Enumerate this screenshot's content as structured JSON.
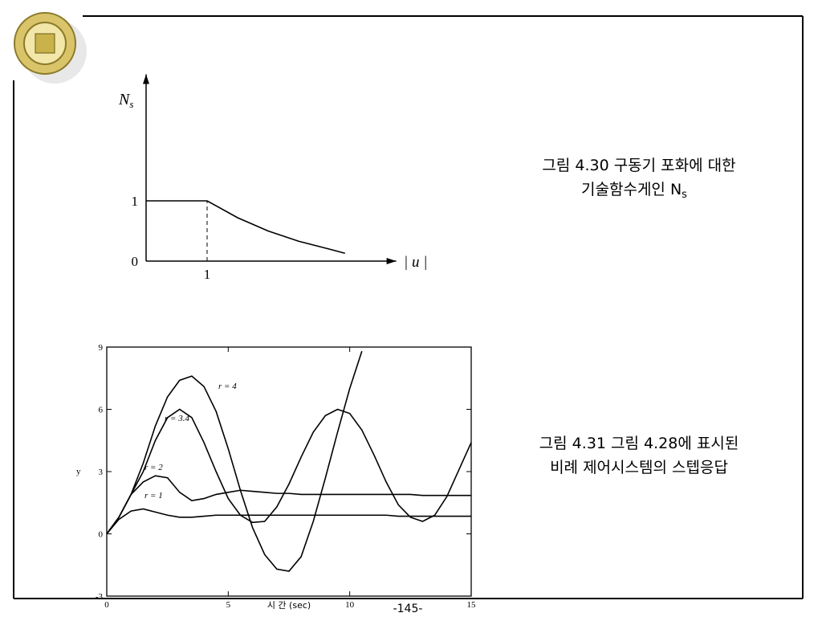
{
  "chart_data": [
    {
      "type": "line",
      "y_label": "N",
      "y_label_subscript": "s",
      "x_label": "| u |",
      "x": [
        0,
        1,
        1.5,
        2,
        2.5,
        3,
        3.26
      ],
      "values": [
        1,
        1,
        0.72,
        0.5,
        0.33,
        0.2,
        0.13
      ],
      "xlim": [
        0,
        4.1
      ],
      "ylim": [
        0,
        3.1
      ],
      "xticks": [
        1
      ],
      "yticks": [
        0,
        1
      ],
      "color": "#000000"
    },
    {
      "type": "line",
      "y_label": "y",
      "x_label": "시 간 (sec)",
      "x": [
        0,
        0.5,
        1,
        1.5,
        2,
        2.5,
        3,
        3.5,
        4,
        4.5,
        5,
        5.5,
        6,
        6.5,
        7,
        7.5,
        8,
        8.5,
        9,
        9.5,
        10,
        10.5,
        11,
        11.5,
        12,
        12.5,
        13,
        13.5,
        14,
        14.5,
        15
      ],
      "series": [
        {
          "name": "r = 1",
          "color": "#000000",
          "values": [
            0,
            0.7,
            1.1,
            1.2,
            1.05,
            0.9,
            0.8,
            0.8,
            0.85,
            0.9,
            0.9,
            0.9,
            0.9,
            0.9,
            0.9,
            0.9,
            0.9,
            0.9,
            0.9,
            0.9,
            0.9,
            0.9,
            0.9,
            0.9,
            0.85,
            0.85,
            0.85,
            0.85,
            0.85,
            0.85,
            0.85
          ]
        },
        {
          "name": "r = 2",
          "color": "#000000",
          "values": [
            0,
            0.8,
            1.9,
            2.5,
            2.8,
            2.7,
            2.0,
            1.6,
            1.7,
            1.9,
            2.0,
            2.1,
            2.05,
            2.0,
            1.95,
            1.95,
            1.9,
            1.9,
            1.9,
            1.9,
            1.9,
            1.9,
            1.9,
            1.9,
            1.9,
            1.9,
            1.85,
            1.85,
            1.85,
            1.85,
            1.85
          ]
        },
        {
          "name": "r = 3.4",
          "color": "#000000",
          "values": [
            0,
            0.8,
            1.9,
            3.0,
            4.5,
            5.6,
            6.0,
            5.6,
            4.4,
            3.0,
            1.7,
            0.9,
            0.55,
            0.6,
            1.3,
            2.4,
            3.7,
            4.9,
            5.7,
            6.0,
            5.8,
            5.0,
            3.8,
            2.5,
            1.4,
            0.8,
            0.6,
            0.9,
            1.8,
            3.1,
            4.4
          ]
        },
        {
          "name": "r = 4",
          "color": "#000000",
          "values": [
            0,
            0.8,
            1.9,
            3.4,
            5.2,
            6.6,
            7.4,
            7.6,
            7.1,
            5.9,
            4.1,
            2.1,
            0.3,
            -1.0,
            -1.7,
            -1.8,
            -1.1,
            0.6,
            2.7,
            4.9,
            7.0,
            8.8,
            null,
            null,
            null,
            null,
            null,
            null,
            null,
            null,
            null
          ]
        }
      ],
      "xlim": [
        0,
        15
      ],
      "ylim": [
        -3,
        9
      ],
      "xticks": [
        0,
        5,
        10,
        15
      ],
      "yticks": [
        -3,
        0,
        3,
        6,
        9
      ]
    }
  ],
  "captions": [
    {
      "line1": "그림 4.30 구동기 포화에 대한",
      "line2": "기술함수게인 N",
      "line2_subscript": "s"
    },
    {
      "line1": "그림 4.31 그림 4.28에 표시된",
      "line2": "비례 제어시스템의 스텝응답"
    }
  ],
  "page_number": "-145-"
}
